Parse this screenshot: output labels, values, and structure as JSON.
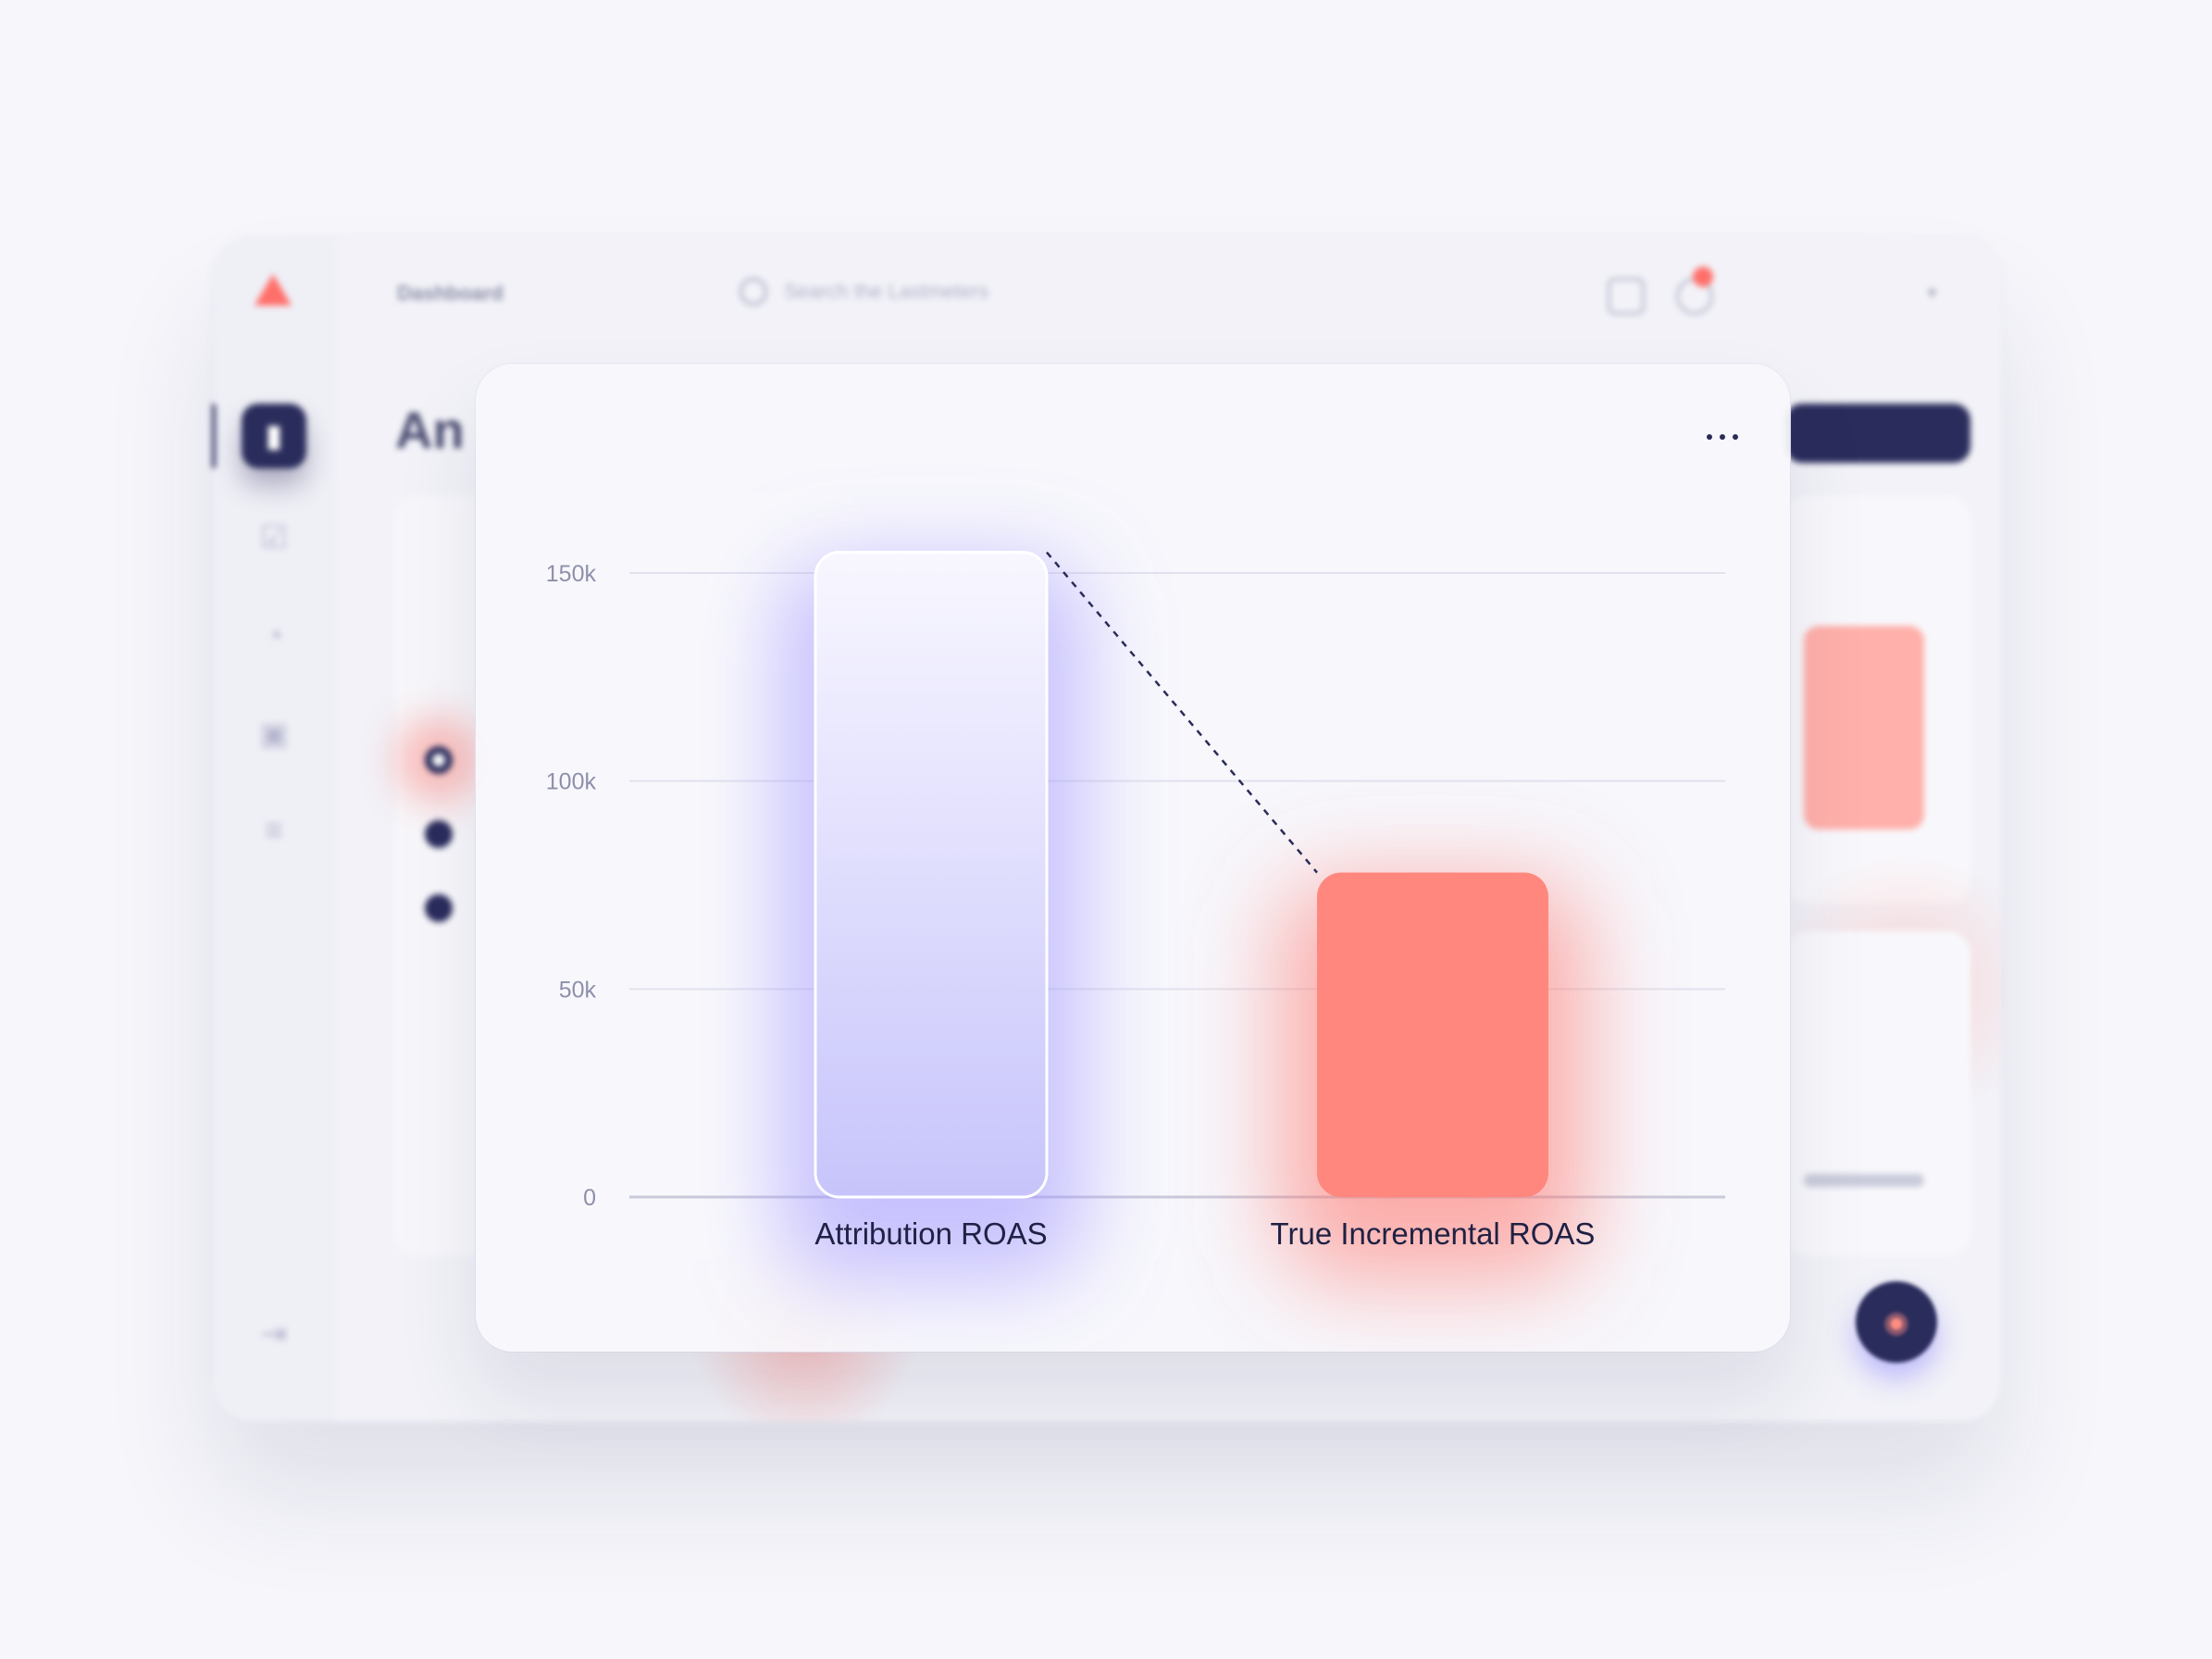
{
  "dashboard": {
    "topbar_title": "Dashboard",
    "search_placeholder": "Search the Lastmeters",
    "page_title": "An",
    "user_line1": "",
    "user_line2": ""
  },
  "chart_data": {
    "type": "bar",
    "categories": [
      "Attribution ROAS",
      "True Incremental ROAS"
    ],
    "values": [
      155000,
      78000
    ],
    "ylim": [
      0,
      150000
    ],
    "yticks": [
      0,
      50000,
      100000,
      150000
    ],
    "ytick_labels": [
      "0",
      "50k",
      "100k",
      "150k"
    ],
    "grid": true,
    "colors": [
      "#cfcdfb",
      "#ff877e"
    ],
    "connector": "dashed line from top of first bar to top of second bar"
  }
}
